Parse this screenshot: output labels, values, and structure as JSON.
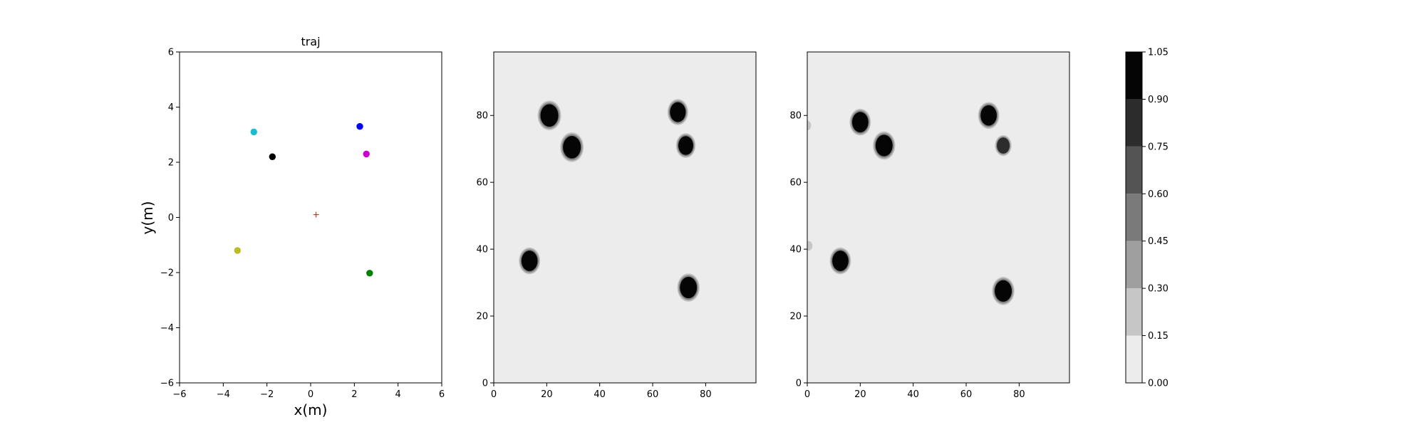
{
  "chart_data": [
    {
      "type": "scatter",
      "title": "traj",
      "xlabel": "x(m)",
      "ylabel": "y(m)",
      "xlim": [
        -6,
        6
      ],
      "ylim": [
        -6,
        6
      ],
      "xticks": [
        -6,
        -4,
        -2,
        0,
        2,
        4,
        6
      ],
      "yticks": [
        -6,
        -4,
        -2,
        0,
        2,
        4,
        6
      ],
      "grid": false,
      "points": [
        {
          "x": -2.6,
          "y": 3.1,
          "color": "#17becf",
          "marker": "dot"
        },
        {
          "x": -1.75,
          "y": 2.2,
          "color": "#000000",
          "marker": "dot"
        },
        {
          "x": 2.25,
          "y": 3.3,
          "color": "#0000ff",
          "marker": "dot"
        },
        {
          "x": 2.55,
          "y": 2.3,
          "color": "#cc00cc",
          "marker": "dot"
        },
        {
          "x": -3.35,
          "y": -1.2,
          "color": "#bcbd22",
          "marker": "dot"
        },
        {
          "x": 2.7,
          "y": -2.02,
          "color": "#008000",
          "marker": "dot"
        },
        {
          "x": 0.25,
          "y": 0.1,
          "color": "#ff0000",
          "marker": "plus"
        }
      ]
    },
    {
      "type": "heatmap",
      "title": "",
      "xlabel": "",
      "ylabel": "",
      "xlim": [
        0,
        99
      ],
      "ylim": [
        0,
        99
      ],
      "xticks": [
        0,
        20,
        40,
        60,
        80
      ],
      "yticks": [
        0,
        20,
        40,
        60,
        80
      ],
      "background_level": 0.05,
      "blobs": [
        {
          "x": 21,
          "y": 80,
          "radius": 4.2,
          "value": 1.0
        },
        {
          "x": 29.5,
          "y": 70.5,
          "radius": 4.2,
          "value": 1.0
        },
        {
          "x": 69.5,
          "y": 81,
          "radius": 3.7,
          "value": 1.0
        },
        {
          "x": 72.5,
          "y": 71,
          "radius": 3.5,
          "value": 1.0
        },
        {
          "x": 13.5,
          "y": 36.5,
          "radius": 3.8,
          "value": 1.0
        },
        {
          "x": 73.5,
          "y": 28.5,
          "radius": 4.0,
          "value": 1.0
        }
      ]
    },
    {
      "type": "heatmap",
      "title": "",
      "xlabel": "",
      "ylabel": "",
      "xlim": [
        0,
        99
      ],
      "ylim": [
        0,
        99
      ],
      "xticks": [
        0,
        20,
        40,
        60,
        80
      ],
      "yticks": [
        0,
        20,
        40,
        60,
        80
      ],
      "background_level": 0.05,
      "blobs": [
        {
          "x": 20,
          "y": 78,
          "radius": 3.8,
          "value": 1.0
        },
        {
          "x": 29,
          "y": 71,
          "radius": 4.0,
          "value": 1.0
        },
        {
          "x": 68.5,
          "y": 80,
          "radius": 3.8,
          "value": 1.0
        },
        {
          "x": 74,
          "y": 71,
          "radius": 3.0,
          "value": 0.85
        },
        {
          "x": 12.5,
          "y": 36.5,
          "radius": 3.8,
          "value": 1.0
        },
        {
          "x": 74,
          "y": 27.5,
          "radius": 4.0,
          "value": 1.0
        },
        {
          "x": 0,
          "y": 77,
          "radius": 1.8,
          "value": 0.25
        },
        {
          "x": 0.5,
          "y": 41,
          "radius": 1.8,
          "value": 0.25
        }
      ]
    }
  ],
  "colorbar": {
    "ticks": [
      "0.00",
      "0.15",
      "0.30",
      "0.45",
      "0.60",
      "0.75",
      "0.90",
      "1.05"
    ],
    "levels": [
      0.0,
      0.15,
      0.3,
      0.45,
      0.6,
      0.75,
      0.9,
      1.05
    ],
    "colors": [
      "#ececec",
      "#c6c6c6",
      "#9f9f9f",
      "#7a7a7a",
      "#545454",
      "#2c2c2c",
      "#050505"
    ]
  }
}
